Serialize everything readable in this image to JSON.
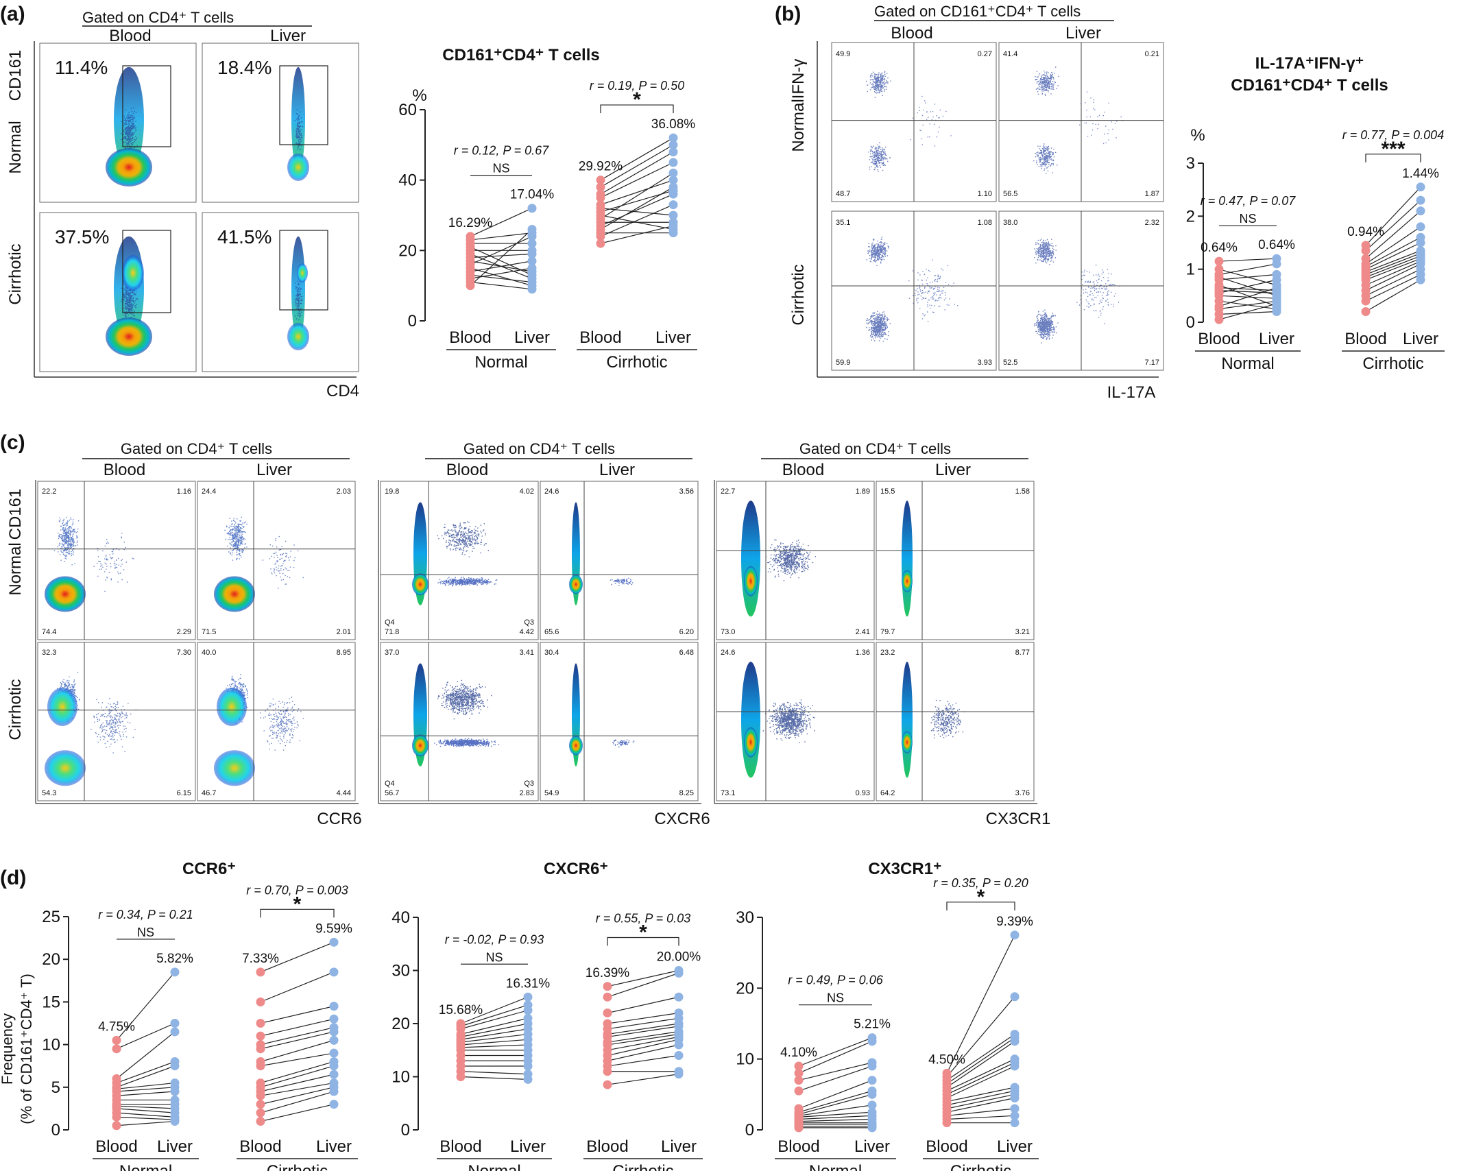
{
  "panel_a": {
    "letter": "(a)",
    "gate": "Gated on CD4⁺ T cells",
    "col_blood": "Blood",
    "col_liver": "Liver",
    "row_normal": "Normal",
    "row_cirrhotic": "Cirrhotic",
    "y_marker": "CD161",
    "x_marker": "CD4",
    "gate_pcts": [
      "11.4%",
      "18.4%",
      "37.5%",
      "41.5%"
    ]
  },
  "panel_b": {
    "letter": "(b)",
    "gate": "Gated on CD161⁺CD4⁺ T cells",
    "col_blood": "Blood",
    "col_liver": "Liver",
    "row_normal": "Normal",
    "row_cirrhotic": "Cirrhotic",
    "y_marker": "IFN-γ",
    "x_marker": "IL-17A",
    "quadrants": [
      [
        "49.9",
        "0.27",
        "48.7",
        "1.10"
      ],
      [
        "41.4",
        "0.21",
        "56.5",
        "1.87"
      ],
      [
        "35.1",
        "1.08",
        "59.9",
        "3.93"
      ],
      [
        "38.0",
        "2.32",
        "52.5",
        "7.17"
      ]
    ]
  },
  "panel_c": {
    "letter": "(c)",
    "gate": "Gated on CD4⁺ T cells",
    "col_blood": "Blood",
    "col_liver": "Liver",
    "row_normal": "Normal",
    "row_cirrhotic": "Cirrhotic",
    "y_marker": "CD161",
    "x_markers": [
      "CCR6",
      "CXCR6",
      "CX3CR1"
    ],
    "q_labels": [
      "Q4",
      "Q3"
    ],
    "quadrants": [
      [
        "22.2",
        "1.16",
        "74.4",
        "2.29"
      ],
      [
        "24.4",
        "2.03",
        "71.5",
        "2.01"
      ],
      [
        "19.8",
        "4.02",
        "71.8",
        "4.42"
      ],
      [
        "24.6",
        "3.56",
        "65.6",
        "6.20"
      ],
      [
        "22.7",
        "1.89",
        "73.0",
        "2.41"
      ],
      [
        "15.5",
        "1.58",
        "79.7",
        "3.21"
      ],
      [
        "32.3",
        "7.30",
        "54.3",
        "6.15"
      ],
      [
        "40.0",
        "8.95",
        "46.7",
        "4.44"
      ],
      [
        "37.0",
        "3.41",
        "56.7",
        "2.83"
      ],
      [
        "30.4",
        "6.48",
        "54.9",
        "8.25"
      ],
      [
        "24.6",
        "1.36",
        "73.1",
        "0.93"
      ],
      [
        "23.2",
        "8.77",
        "64.2",
        "3.76"
      ]
    ]
  },
  "panel_d": {
    "letter": "(d)",
    "y_label_1": "Frequency",
    "y_label_2": "(% of CD161⁺CD4⁺ T)"
  },
  "chart_data": [
    {
      "type": "line",
      "title": "CD161⁺CD4⁺ T cells",
      "ylabel": "%",
      "ylim": [
        0,
        60
      ],
      "yticks": [
        0,
        20,
        40,
        60
      ],
      "categories": [
        "Blood",
        "Liver",
        "Blood",
        "Liver"
      ],
      "groups": [
        "Normal",
        "Cirrhotic"
      ],
      "normal": {
        "stat": "r = 0.12, P = 0.67",
        "sig": "NS",
        "blood_label": "16.29%",
        "liver_label": "17.04%",
        "blood": [
          24,
          23,
          22,
          21,
          20,
          19,
          18,
          17,
          16,
          15,
          14,
          13,
          12,
          11,
          10
        ],
        "liver": [
          32,
          25,
          22,
          13,
          20,
          12,
          19,
          14,
          24,
          10,
          17,
          11,
          15,
          9,
          26
        ]
      },
      "cirrhotic": {
        "stat": "r = 0.19, P = 0.50",
        "sig": "*",
        "blood_label": "29.92%",
        "liver_label": "36.08%",
        "blood": [
          40,
          38,
          36,
          35,
          33,
          32,
          31,
          30,
          29,
          28,
          27,
          26,
          25,
          24,
          22
        ],
        "liver": [
          52,
          50,
          48,
          45,
          40,
          30,
          37,
          26,
          42,
          28,
          36,
          38,
          25,
          33,
          27
        ]
      }
    },
    {
      "type": "line",
      "title": "IL-17A⁺IFN-γ⁺ CD161⁺CD4⁺ T cells",
      "title_line1": "IL-17A⁺IFN-γ⁺",
      "title_line2": "CD161⁺CD4⁺ T cells",
      "ylabel": "%",
      "ylim": [
        0,
        3
      ],
      "yticks": [
        0,
        1,
        2,
        3
      ],
      "categories": [
        "Blood",
        "Liver",
        "Blood",
        "Liver"
      ],
      "groups": [
        "Normal",
        "Cirrhotic"
      ],
      "normal": {
        "stat": "r = 0.47, P = 0.07",
        "sig": "NS",
        "blood_label": "0.64%",
        "liver_label": "0.64%",
        "blood": [
          1.15,
          1.0,
          0.9,
          0.85,
          0.8,
          0.7,
          0.65,
          0.6,
          0.55,
          0.5,
          0.4,
          0.3,
          0.25,
          0.15,
          0.05
        ],
        "liver": [
          1.2,
          0.7,
          1.1,
          0.5,
          0.9,
          0.3,
          0.6,
          0.55,
          0.8,
          0.45,
          0.25,
          0.65,
          0.4,
          0.2,
          0.35
        ]
      },
      "cirrhotic": {
        "stat": "r = 0.77, P = 0.004",
        "sig": "***",
        "blood_label": "0.94%",
        "liver_label": "1.44%",
        "blood": [
          1.45,
          1.35,
          1.2,
          1.1,
          1.05,
          1.0,
          0.95,
          0.9,
          0.85,
          0.8,
          0.7,
          0.6,
          0.5,
          0.4,
          0.2
        ],
        "liver": [
          2.55,
          2.3,
          2.1,
          1.8,
          1.6,
          1.5,
          1.35,
          1.3,
          1.25,
          1.2,
          1.15,
          1.1,
          1.0,
          0.9,
          0.8
        ]
      }
    },
    {
      "type": "line",
      "title": "CCR6⁺",
      "ylabel": "Frequency (% of CD161⁺CD4⁺ T)",
      "ylim": [
        0,
        25
      ],
      "yticks": [
        0,
        5,
        10,
        15,
        20,
        25
      ],
      "categories": [
        "Blood",
        "Liver",
        "Blood",
        "Liver"
      ],
      "groups": [
        "Normal",
        "Cirrhotic"
      ],
      "normal": {
        "stat": "r = 0.34, P = 0.21",
        "sig": "NS",
        "blood_label": "4.75%",
        "liver_label": "5.82%",
        "blood": [
          10.5,
          9.5,
          6.0,
          5.5,
          5.0,
          4.8,
          4.5,
          4.0,
          3.5,
          3.0,
          2.8,
          2.5,
          2.0,
          1.5,
          0.5
        ],
        "liver": [
          18.5,
          12.5,
          11.5,
          8.0,
          7.5,
          5.5,
          5.0,
          4.5,
          3.5,
          3.0,
          2.5,
          2.0,
          1.5,
          1.2,
          1.0
        ]
      },
      "cirrhotic": {
        "stat": "r = 0.70, P = 0.003",
        "sig": "*",
        "blood_label": "7.33%",
        "liver_label": "9.59%",
        "blood": [
          18.5,
          15.0,
          12.5,
          11.0,
          10.0,
          9.5,
          8.0,
          7.5,
          5.5,
          5.0,
          4.5,
          4.0,
          3.0,
          2.0,
          1.0
        ],
        "liver": [
          22.0,
          18.5,
          14.5,
          13.0,
          12.0,
          11.5,
          10.5,
          9.0,
          8.0,
          7.5,
          6.5,
          5.5,
          5.0,
          4.5,
          3.0
        ]
      }
    },
    {
      "type": "line",
      "title": "CXCR6⁺",
      "ylim": [
        0,
        40
      ],
      "yticks": [
        0,
        10,
        20,
        30,
        40
      ],
      "categories": [
        "Blood",
        "Liver",
        "Blood",
        "Liver"
      ],
      "groups": [
        "Normal",
        "Cirrhotic"
      ],
      "normal": {
        "stat": "r = -0.02, P = 0.93",
        "sig": "NS",
        "blood_label": "15.68%",
        "liver_label": "16.31%",
        "blood": [
          20.0,
          19.5,
          19.0,
          18.0,
          17.5,
          17.0,
          16.5,
          16.0,
          15.5,
          15.0,
          14.0,
          13.0,
          12.0,
          11.0,
          10.0
        ],
        "liver": [
          25.0,
          23.5,
          22.5,
          21.0,
          20.0,
          19.0,
          18.0,
          17.0,
          16.0,
          15.0,
          14.0,
          13.0,
          12.0,
          10.5,
          9.5
        ]
      },
      "cirrhotic": {
        "stat": "r = 0.55, P = 0.03",
        "sig": "*",
        "blood_label": "16.39%",
        "liver_label": "20.00%",
        "blood": [
          27.0,
          25.0,
          22.0,
          20.0,
          19.0,
          18.0,
          17.5,
          16.5,
          16.0,
          15.0,
          14.0,
          13.0,
          12.0,
          11.0,
          8.5
        ],
        "liver": [
          30.0,
          29.5,
          25.0,
          22.0,
          21.0,
          20.0,
          19.5,
          18.5,
          18.0,
          17.5,
          17.0,
          16.0,
          14.0,
          11.0,
          10.5
        ]
      }
    },
    {
      "type": "line",
      "title": "CX3CR1⁺",
      "ylim": [
        0,
        30
      ],
      "yticks": [
        0,
        10,
        20,
        30
      ],
      "categories": [
        "Blood",
        "Liver",
        "Blood",
        "Liver"
      ],
      "groups": [
        "Normal",
        "Cirrhotic"
      ],
      "normal": {
        "stat": "r = 0.49, P = 0.06",
        "sig": "NS",
        "blood_label": "4.10%",
        "liver_label": "5.21%",
        "blood": [
          9.0,
          8.0,
          7.0,
          5.5,
          3.0,
          2.5,
          2.2,
          2.0,
          1.8,
          1.5,
          1.2,
          1.0,
          0.8,
          0.5,
          0.3
        ],
        "liver": [
          13.0,
          12.5,
          9.5,
          9.0,
          7.0,
          5.5,
          5.0,
          3.5,
          2.5,
          2.0,
          1.5,
          1.0,
          0.8,
          0.5,
          0.3
        ]
      },
      "cirrhotic": {
        "stat": "r = 0.35, P = 0.20",
        "sig": "*",
        "blood_label": "4.50%",
        "liver_label": "9.39%",
        "blood": [
          8.0,
          7.5,
          7.0,
          6.5,
          6.0,
          5.5,
          5.0,
          4.5,
          4.0,
          3.5,
          3.0,
          2.5,
          2.0,
          1.5,
          1.0
        ],
        "liver": [
          27.5,
          18.8,
          13.5,
          13.0,
          12.5,
          10.0,
          9.5,
          9.0,
          6.0,
          5.5,
          5.0,
          4.5,
          3.0,
          2.0,
          1.0
        ]
      }
    }
  ]
}
